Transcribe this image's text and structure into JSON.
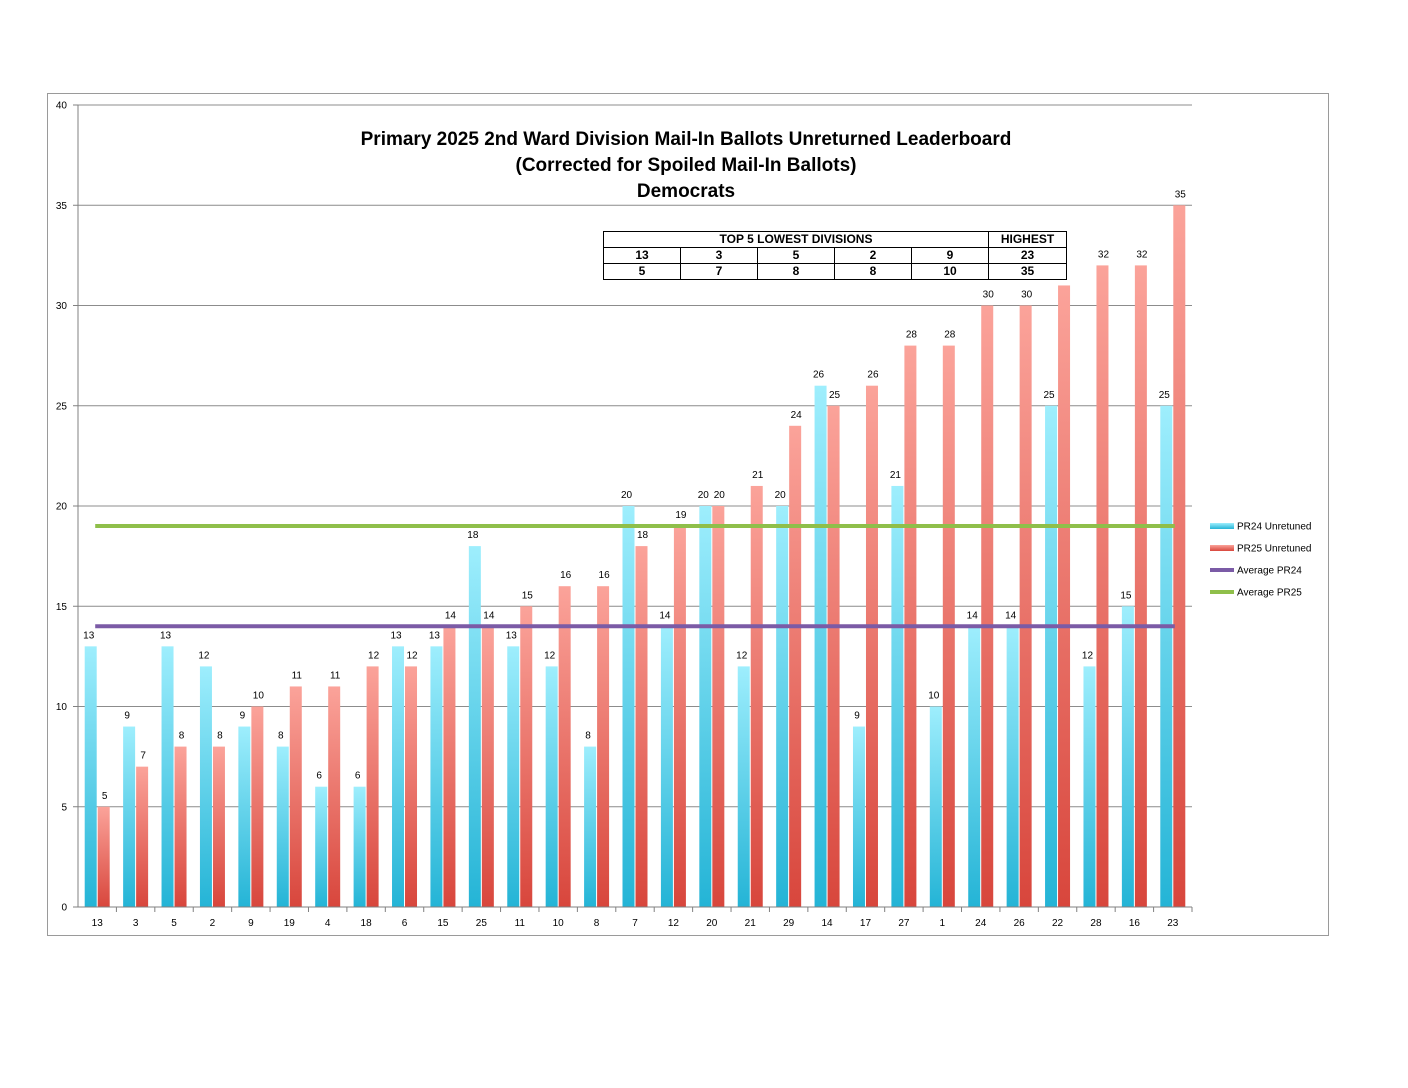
{
  "chart_data": {
    "type": "bar",
    "title": [
      "Primary 2025 2nd Ward Division Mail-In Ballots Unreturned Leaderboard",
      "(Corrected for Spoiled Mail-In Ballots)",
      "Democrats"
    ],
    "categories": [
      "13",
      "3",
      "5",
      "2",
      "9",
      "19",
      "4",
      "18",
      "6",
      "15",
      "25",
      "11",
      "10",
      "8",
      "7",
      "12",
      "20",
      "21",
      "29",
      "14",
      "17",
      "27",
      "1",
      "24",
      "26",
      "22",
      "28",
      "16",
      "23"
    ],
    "series": [
      {
        "name": "PR24 Unretuned",
        "values": [
          13,
          9,
          13,
          12,
          9,
          8,
          6,
          6,
          13,
          13,
          18,
          13,
          12,
          8,
          20,
          14,
          20,
          12,
          20,
          26,
          9,
          21,
          10,
          14,
          14,
          25,
          12,
          15,
          25
        ]
      },
      {
        "name": "PR25 Unretuned",
        "values": [
          5,
          7,
          8,
          8,
          10,
          11,
          11,
          12,
          12,
          14,
          14,
          15,
          16,
          16,
          18,
          19,
          20,
          21,
          24,
          25,
          26,
          28,
          28,
          30,
          30,
          31,
          32,
          32,
          35
        ]
      }
    ],
    "point_labels": {
      "PR24 Unretuned": [
        "13",
        "9",
        "13",
        "12",
        "9",
        "8",
        "6",
        "6",
        "13",
        "13",
        "18",
        "13",
        "12",
        "8",
        "20",
        "14",
        "20",
        "12",
        "20",
        "26",
        "9",
        "21",
        "10",
        "14",
        "14",
        "25",
        "12",
        "15",
        "25"
      ],
      "PR25 Unretuned": [
        "5",
        "7",
        "8",
        "8",
        "10",
        "11",
        "11",
        "12",
        "12",
        "14",
        "14",
        "15",
        "16",
        "16",
        "18",
        "19",
        "20",
        "21",
        "24",
        "25",
        "26",
        "28",
        "28",
        "30",
        "30",
        "",
        "32",
        "32",
        "35"
      ]
    },
    "reference_lines": [
      {
        "name": "Average PR24",
        "value": 14,
        "color": "#7b5ba6"
      },
      {
        "name": "Average PR25",
        "value": 19,
        "color": "#8fbf4a"
      }
    ],
    "ylim": [
      0,
      40
    ],
    "yticks": [
      0,
      5,
      10,
      15,
      20,
      25,
      30,
      35,
      40
    ],
    "grid": true,
    "legend_position": "right",
    "colors": {
      "pr24_top": "#9eeefd",
      "pr24_bottom": "#24b4d6",
      "pr25_top": "#fba39a",
      "pr25_bottom": "#d8463c",
      "grid": "#8c8c8c",
      "axis": "#808080"
    }
  },
  "leaderboard": {
    "header_left": "TOP 5 LOWEST DIVISIONS",
    "header_right": "HIGHEST",
    "divisions": [
      "13",
      "3",
      "5",
      "2",
      "9"
    ],
    "counts": [
      "5",
      "7",
      "8",
      "8",
      "10"
    ],
    "highest_division": "23",
    "highest_count": "35"
  }
}
